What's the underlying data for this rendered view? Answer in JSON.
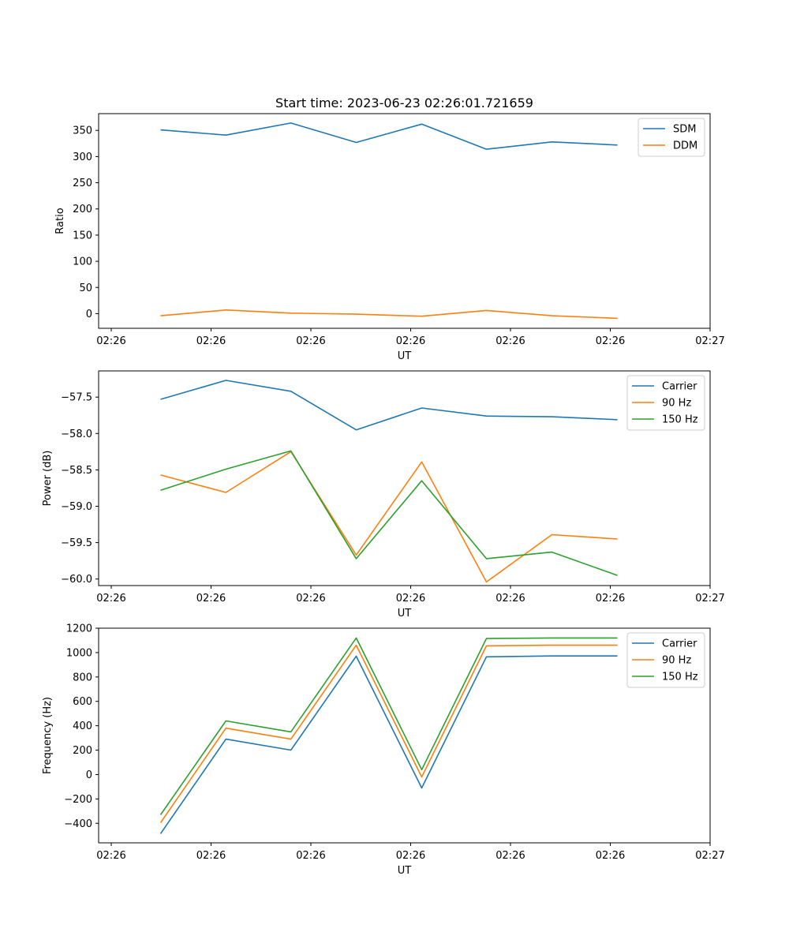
{
  "title": "Start time: 2023-06-23 02:26:01.721659",
  "chart_data": [
    {
      "type": "line",
      "title": "Start time: 2023-06-23 02:26:01.721659",
      "xlabel": "UT",
      "ylabel": "Ratio",
      "x_tick_labels": [
        "02:26",
        "02:26",
        "02:26",
        "02:26",
        "02:26",
        "02:26",
        "02:27"
      ],
      "y_ticks": [
        0,
        50,
        100,
        150,
        200,
        250,
        300,
        350
      ],
      "ylim": [
        -28,
        382
      ],
      "legend": "top-right",
      "grid": false,
      "series": [
        {
          "name": "SDM",
          "color": "#1f77b4",
          "values": [
            351,
            341,
            364,
            327,
            362,
            314,
            328,
            322
          ]
        },
        {
          "name": "DDM",
          "color": "#ff7f0e",
          "values": [
            -4,
            7,
            1,
            -1,
            -5,
            6,
            -4,
            -9
          ]
        }
      ]
    },
    {
      "type": "line",
      "title": "",
      "xlabel": "UT",
      "ylabel": "Power (dB)",
      "x_tick_labels": [
        "02:26",
        "02:26",
        "02:26",
        "02:26",
        "02:26",
        "02:26",
        "02:27"
      ],
      "y_ticks": [
        -60.0,
        -59.5,
        -59.0,
        -58.5,
        -58.0,
        -57.5
      ],
      "y_tick_labels": [
        "−60.0",
        "−59.5",
        "−59.0",
        "−58.5",
        "−58.0",
        "−57.5"
      ],
      "ylim": [
        -60.09,
        -57.14
      ],
      "legend": "top-right",
      "grid": false,
      "series": [
        {
          "name": "Carrier",
          "color": "#1f77b4",
          "values": [
            -57.53,
            -57.27,
            -57.42,
            -57.95,
            -57.65,
            -57.76,
            -57.77,
            -57.81
          ]
        },
        {
          "name": "90 Hz",
          "color": "#ff7f0e",
          "values": [
            -58.57,
            -58.81,
            -58.25,
            -59.67,
            -58.39,
            -60.04,
            -59.39,
            -59.45
          ]
        },
        {
          "name": "150 Hz",
          "color": "#2ca02c",
          "values": [
            -58.78,
            -58.49,
            -58.24,
            -59.72,
            -58.65,
            -59.72,
            -59.63,
            -59.95
          ]
        }
      ]
    },
    {
      "type": "line",
      "title": "",
      "xlabel": "UT",
      "ylabel": "Frequency (Hz)",
      "x_tick_labels": [
        "02:26",
        "02:26",
        "02:26",
        "02:26",
        "02:26",
        "02:26",
        "02:27"
      ],
      "y_ticks": [
        -400,
        -200,
        0,
        200,
        400,
        600,
        800,
        1000,
        1200
      ],
      "y_tick_labels": [
        "−400",
        "−200",
        "0",
        "200",
        "400",
        "600",
        "800",
        "1000",
        "1200"
      ],
      "ylim": [
        -560,
        1200
      ],
      "legend": "top-right",
      "grid": false,
      "series": [
        {
          "name": "Carrier",
          "color": "#1f77b4",
          "values": [
            -485,
            290,
            200,
            970,
            -110,
            965,
            972,
            972
          ]
        },
        {
          "name": "90 Hz",
          "color": "#ff7f0e",
          "values": [
            -395,
            380,
            290,
            1060,
            -20,
            1055,
            1060,
            1060
          ]
        },
        {
          "name": "150 Hz",
          "color": "#2ca02c",
          "values": [
            -330,
            440,
            350,
            1120,
            40,
            1115,
            1120,
            1120
          ]
        }
      ]
    }
  ]
}
